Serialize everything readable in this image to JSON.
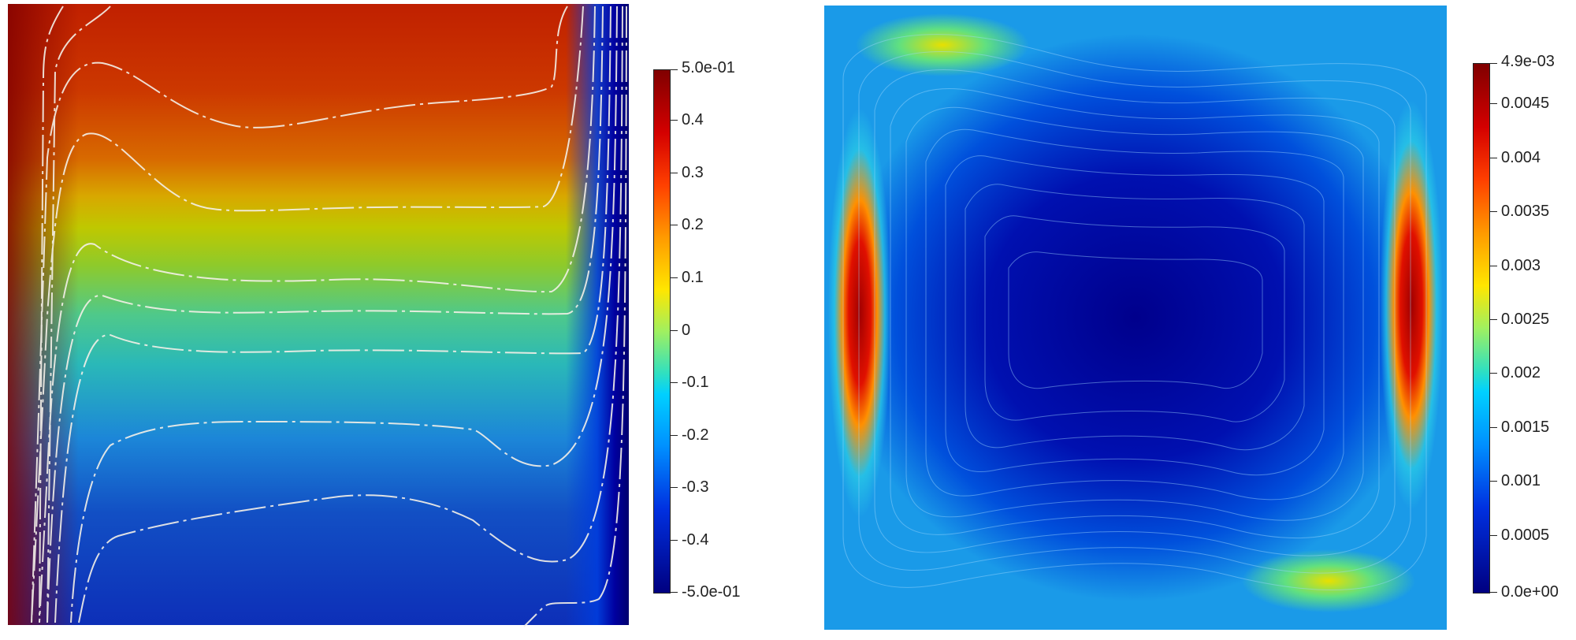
{
  "left_colorbar": {
    "max_label": "5.0e-01",
    "min_label": "-5.0e-01",
    "ticks": [
      "0.4",
      "0.3",
      "0.2",
      "0.1",
      "0",
      "-0.1",
      "-0.2",
      "-0.3",
      "-0.4"
    ]
  },
  "right_colorbar": {
    "max_label": "4.9e-03",
    "min_label": "0.0e+00",
    "ticks": [
      "0.0045",
      "0.004",
      "0.0035",
      "0.003",
      "0.0025",
      "0.002",
      "0.0015",
      "0.001",
      "0.0005"
    ]
  },
  "colormap": [
    "#800000",
    "#ff0000",
    "#ffa500",
    "#ffff00",
    "#7fff7f",
    "#00ffff",
    "#0080ff",
    "#0000ff",
    "#000080"
  ]
}
